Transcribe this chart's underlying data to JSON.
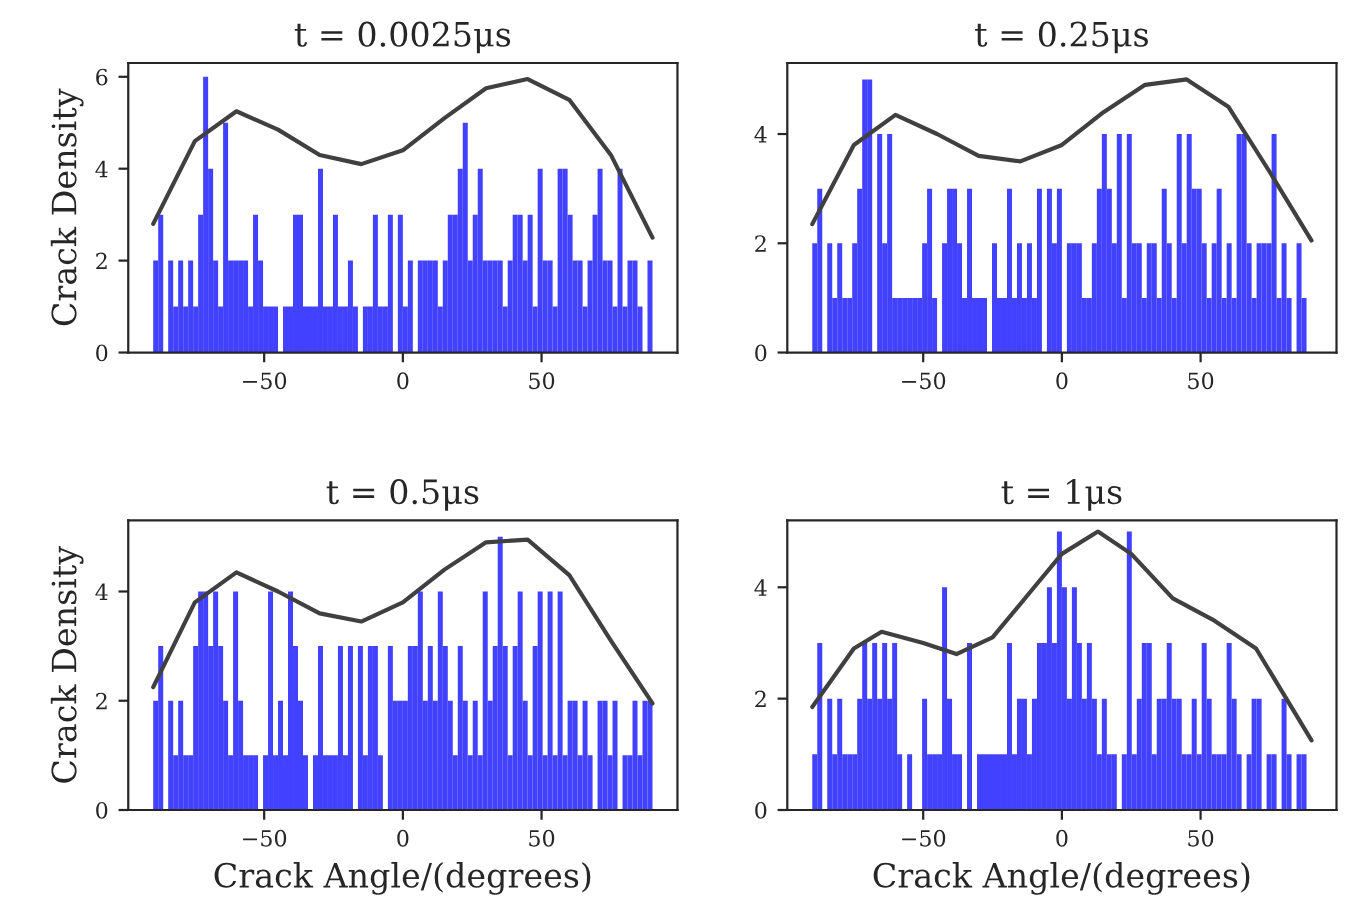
{
  "chart_data": [
    {
      "type": "histogram",
      "title": "t = 0.0025μs",
      "ylabel": "Crack Density",
      "xlim": [
        -99,
        99
      ],
      "xticks": [
        -50,
        0,
        50
      ],
      "ylim": [
        0,
        6.3
      ],
      "yticks": [
        0,
        2,
        4,
        6
      ],
      "grid": false,
      "legend": false,
      "series": [
        {
          "color": "#4141ff",
          "bins": [
            -90,
            -88.2,
            -86.4,
            -84.6,
            -82.8,
            -81,
            -79.2,
            -77.4,
            -75.6,
            -73.8,
            -72,
            -70.2,
            -68.4,
            -66.6,
            -64.8,
            -63,
            -61.2,
            -59.4,
            -57.6,
            -55.8,
            -54,
            -52.2,
            -50.4,
            -48.6,
            -46.8,
            -45,
            -43.2,
            -41.4,
            -39.6,
            -37.8,
            -36,
            -34.2,
            -32.4,
            -30.6,
            -28.8,
            -27,
            -25.2,
            -23.4,
            -21.6,
            -19.8,
            -18,
            -16.2,
            -14.4,
            -12.6,
            -10.8,
            -9,
            -7.2,
            -5.4,
            -3.6,
            -1.8,
            0,
            1.8,
            3.6,
            5.4,
            7.2,
            9,
            10.8,
            12.6,
            14.4,
            16.2,
            18,
            19.8,
            21.6,
            23.4,
            25.2,
            27,
            28.8,
            30.6,
            32.4,
            34.2,
            36,
            37.8,
            39.6,
            41.4,
            43.2,
            45,
            46.8,
            48.6,
            50.4,
            52.2,
            54,
            55.8,
            57.6,
            59.4,
            61.2,
            63,
            64.8,
            66.6,
            68.4,
            70.2,
            72,
            73.8,
            75.6,
            77.4,
            79.2,
            81,
            82.8,
            84.6,
            86.4,
            88.2,
            90
          ],
          "values": [
            2,
            3,
            0,
            2,
            1,
            2,
            1,
            2,
            1,
            3,
            6,
            4,
            2,
            1,
            5,
            2,
            2,
            2,
            2,
            1,
            3,
            2,
            1,
            1,
            1,
            0,
            1,
            1,
            3,
            3,
            1,
            1,
            1,
            4,
            1,
            1,
            3,
            1,
            1,
            2,
            1,
            0,
            1,
            1,
            3,
            1,
            1,
            3,
            0,
            3,
            1,
            2,
            0,
            2,
            2,
            2,
            2,
            1,
            2,
            3,
            3,
            4,
            5,
            2,
            3,
            4,
            2,
            2,
            2,
            2,
            1,
            2,
            3,
            3,
            2,
            3,
            1,
            4,
            2,
            2,
            1,
            4,
            4,
            3,
            2,
            2,
            1,
            2,
            3,
            4,
            2,
            2,
            1,
            4,
            1,
            2,
            2,
            1,
            0,
            2
          ]
        },
        {
          "type": "line",
          "color": "#404040",
          "x": [
            -90,
            -75,
            -60,
            -45,
            -30,
            -15,
            0,
            15,
            30,
            45,
            60,
            75,
            90
          ],
          "values": [
            2.8,
            4.6,
            5.25,
            4.85,
            4.3,
            4.1,
            4.4,
            5.1,
            5.75,
            5.95,
            5.5,
            4.3,
            2.5
          ]
        }
      ]
    },
    {
      "type": "histogram",
      "title": "t = 0.25μs",
      "xlim": [
        -99,
        99
      ],
      "xticks": [
        -50,
        0,
        50
      ],
      "ylim": [
        0,
        5.3
      ],
      "yticks": [
        0,
        2,
        4
      ],
      "grid": false,
      "legend": false,
      "series": [
        {
          "color": "#4141ff",
          "bins": [
            -90,
            -88.2,
            -86.4,
            -84.6,
            -82.8,
            -81,
            -79.2,
            -77.4,
            -75.6,
            -73.8,
            -72,
            -70.2,
            -68.4,
            -66.6,
            -64.8,
            -63,
            -61.2,
            -59.4,
            -57.6,
            -55.8,
            -54,
            -52.2,
            -50.4,
            -48.6,
            -46.8,
            -45,
            -43.2,
            -41.4,
            -39.6,
            -37.8,
            -36,
            -34.2,
            -32.4,
            -30.6,
            -28.8,
            -27,
            -25.2,
            -23.4,
            -21.6,
            -19.8,
            -18,
            -16.2,
            -14.4,
            -12.6,
            -10.8,
            -9,
            -7.2,
            -5.4,
            -3.6,
            -1.8,
            0,
            1.8,
            3.6,
            5.4,
            7.2,
            9,
            10.8,
            12.6,
            14.4,
            16.2,
            18,
            19.8,
            21.6,
            23.4,
            25.2,
            27,
            28.8,
            30.6,
            32.4,
            34.2,
            36,
            37.8,
            39.6,
            41.4,
            43.2,
            45,
            46.8,
            48.6,
            50.4,
            52.2,
            54,
            55.8,
            57.6,
            59.4,
            61.2,
            63,
            64.8,
            66.6,
            68.4,
            70.2,
            72,
            73.8,
            75.6,
            77.4,
            79.2,
            81,
            82.8,
            84.6,
            86.4,
            88.2,
            90
          ],
          "values": [
            2,
            3,
            0,
            2,
            1,
            2,
            1,
            1,
            2,
            3,
            5,
            5,
            0,
            4,
            2,
            4,
            1,
            1,
            1,
            1,
            1,
            1,
            2,
            3,
            1,
            0,
            2,
            3,
            3,
            2,
            1,
            3,
            1,
            1,
            1,
            0,
            2,
            1,
            1,
            3,
            1,
            2,
            1,
            2,
            1,
            3,
            0,
            3,
            2,
            3,
            0,
            2,
            2,
            2,
            1,
            1,
            2,
            3,
            4,
            3,
            2,
            4,
            1,
            4,
            2,
            2,
            1,
            2,
            2,
            1,
            3,
            2,
            1,
            4,
            2,
            4,
            3,
            3,
            2,
            1,
            2,
            3,
            1,
            2,
            1,
            4,
            4,
            2,
            1,
            2,
            2,
            2,
            4,
            1,
            2,
            1,
            0,
            2,
            1,
            0
          ]
        },
        {
          "type": "line",
          "color": "#404040",
          "x": [
            -90,
            -75,
            -60,
            -45,
            -30,
            -15,
            0,
            15,
            30,
            45,
            60,
            75,
            90
          ],
          "values": [
            2.35,
            3.8,
            4.35,
            4.0,
            3.6,
            3.5,
            3.8,
            4.4,
            4.9,
            5.0,
            4.5,
            3.3,
            2.05
          ]
        }
      ]
    },
    {
      "type": "histogram",
      "title": "t = 0.5μs",
      "ylabel": "Crack Density",
      "xlabel": "Crack Angle/(degrees)",
      "xlim": [
        -99,
        99
      ],
      "xticks": [
        -50,
        0,
        50
      ],
      "ylim": [
        0,
        5.3
      ],
      "yticks": [
        0,
        2,
        4
      ],
      "grid": false,
      "legend": false,
      "series": [
        {
          "color": "#4141ff",
          "bins": [
            -90,
            -88.2,
            -86.4,
            -84.6,
            -82.8,
            -81,
            -79.2,
            -77.4,
            -75.6,
            -73.8,
            -72,
            -70.2,
            -68.4,
            -66.6,
            -64.8,
            -63,
            -61.2,
            -59.4,
            -57.6,
            -55.8,
            -54,
            -52.2,
            -50.4,
            -48.6,
            -46.8,
            -45,
            -43.2,
            -41.4,
            -39.6,
            -37.8,
            -36,
            -34.2,
            -32.4,
            -30.6,
            -28.8,
            -27,
            -25.2,
            -23.4,
            -21.6,
            -19.8,
            -18,
            -16.2,
            -14.4,
            -12.6,
            -10.8,
            -9,
            -7.2,
            -5.4,
            -3.6,
            -1.8,
            0,
            1.8,
            3.6,
            5.4,
            7.2,
            9,
            10.8,
            12.6,
            14.4,
            16.2,
            18,
            19.8,
            21.6,
            23.4,
            25.2,
            27,
            28.8,
            30.6,
            32.4,
            34.2,
            36,
            37.8,
            39.6,
            41.4,
            43.2,
            45,
            46.8,
            48.6,
            50.4,
            52.2,
            54,
            55.8,
            57.6,
            59.4,
            61.2,
            63,
            64.8,
            66.6,
            68.4,
            70.2,
            72,
            73.8,
            75.6,
            77.4,
            79.2,
            81,
            82.8,
            84.6,
            86.4,
            88.2,
            90
          ],
          "values": [
            2,
            3,
            0,
            2,
            1,
            2,
            1,
            1,
            3,
            4,
            4,
            3,
            4,
            3,
            2,
            1,
            4,
            2,
            1,
            1,
            1,
            0,
            1,
            4,
            1,
            2,
            1,
            4,
            3,
            2,
            1,
            0,
            1,
            3,
            1,
            1,
            1,
            3,
            1,
            3,
            0,
            3,
            1,
            3,
            3,
            1,
            0,
            3,
            2,
            2,
            2,
            3,
            3,
            4,
            2,
            3,
            2,
            4,
            3,
            2,
            1,
            3,
            2,
            1,
            2,
            1,
            4,
            2,
            3,
            5,
            3,
            1,
            3,
            4,
            2,
            1,
            3,
            4,
            1,
            4,
            1,
            4,
            1,
            2,
            2,
            1,
            2,
            1,
            0,
            2,
            2,
            1,
            2,
            0,
            1,
            1,
            2,
            1,
            2,
            2
          ]
        },
        {
          "type": "line",
          "color": "#404040",
          "x": [
            -90,
            -75,
            -60,
            -45,
            -30,
            -15,
            0,
            15,
            30,
            45,
            60,
            75,
            90
          ],
          "values": [
            2.25,
            3.8,
            4.35,
            4.0,
            3.6,
            3.45,
            3.8,
            4.4,
            4.9,
            4.95,
            4.3,
            3.1,
            1.95
          ]
        }
      ]
    },
    {
      "type": "histogram",
      "title": "t = 1μs",
      "xlabel": "Crack Angle/(degrees)",
      "xlim": [
        -99,
        99
      ],
      "xticks": [
        -50,
        0,
        50
      ],
      "ylim": [
        0,
        5.2
      ],
      "yticks": [
        0,
        2,
        4
      ],
      "grid": false,
      "legend": false,
      "series": [
        {
          "color": "#4141ff",
          "bins": [
            -90,
            -88.2,
            -86.4,
            -84.6,
            -82.8,
            -81,
            -79.2,
            -77.4,
            -75.6,
            -73.8,
            -72,
            -70.2,
            -68.4,
            -66.6,
            -64.8,
            -63,
            -61.2,
            -59.4,
            -57.6,
            -55.8,
            -54,
            -52.2,
            -50.4,
            -48.6,
            -46.8,
            -45,
            -43.2,
            -41.4,
            -39.6,
            -37.8,
            -36,
            -34.2,
            -32.4,
            -30.6,
            -28.8,
            -27,
            -25.2,
            -23.4,
            -21.6,
            -19.8,
            -18,
            -16.2,
            -14.4,
            -12.6,
            -10.8,
            -9,
            -7.2,
            -5.4,
            -3.6,
            -1.8,
            0,
            1.8,
            3.6,
            5.4,
            7.2,
            9,
            10.8,
            12.6,
            14.4,
            16.2,
            18,
            19.8,
            21.6,
            23.4,
            25.2,
            27,
            28.8,
            30.6,
            32.4,
            34.2,
            36,
            37.8,
            39.6,
            41.4,
            43.2,
            45,
            46.8,
            48.6,
            50.4,
            52.2,
            54,
            55.8,
            57.6,
            59.4,
            61.2,
            63,
            64.8,
            66.6,
            68.4,
            70.2,
            72,
            73.8,
            75.6,
            77.4,
            79.2,
            81,
            82.8,
            84.6,
            86.4,
            88.2,
            90
          ],
          "values": [
            1,
            3,
            0,
            2,
            1,
            2,
            1,
            1,
            1,
            2,
            3,
            2,
            3,
            2,
            3,
            2,
            3,
            1,
            0,
            1,
            0,
            0,
            2,
            1,
            1,
            1,
            4,
            2,
            1,
            1,
            0,
            3,
            0,
            1,
            1,
            1,
            1,
            1,
            1,
            3,
            1,
            2,
            2,
            1,
            2,
            3,
            3,
            4,
            3,
            5,
            4,
            2,
            4,
            3,
            2,
            3,
            2,
            1,
            2,
            1,
            1,
            0,
            1,
            5,
            1,
            2,
            3,
            3,
            1,
            2,
            2,
            3,
            2,
            2,
            1,
            1,
            2,
            1,
            3,
            2,
            1,
            1,
            1,
            3,
            2,
            1,
            0,
            1,
            2,
            2,
            0,
            1,
            1,
            0,
            2,
            1,
            0,
            1,
            1,
            0
          ]
        },
        {
          "type": "line",
          "color": "#404040",
          "x": [
            -90,
            -75,
            -65,
            -50,
            -38,
            -25,
            -10,
            0,
            13,
            25,
            40,
            55,
            70,
            90
          ],
          "values": [
            1.85,
            2.9,
            3.2,
            3.0,
            2.8,
            3.1,
            4.0,
            4.6,
            5.0,
            4.6,
            3.8,
            3.4,
            2.9,
            1.25
          ]
        }
      ]
    }
  ]
}
